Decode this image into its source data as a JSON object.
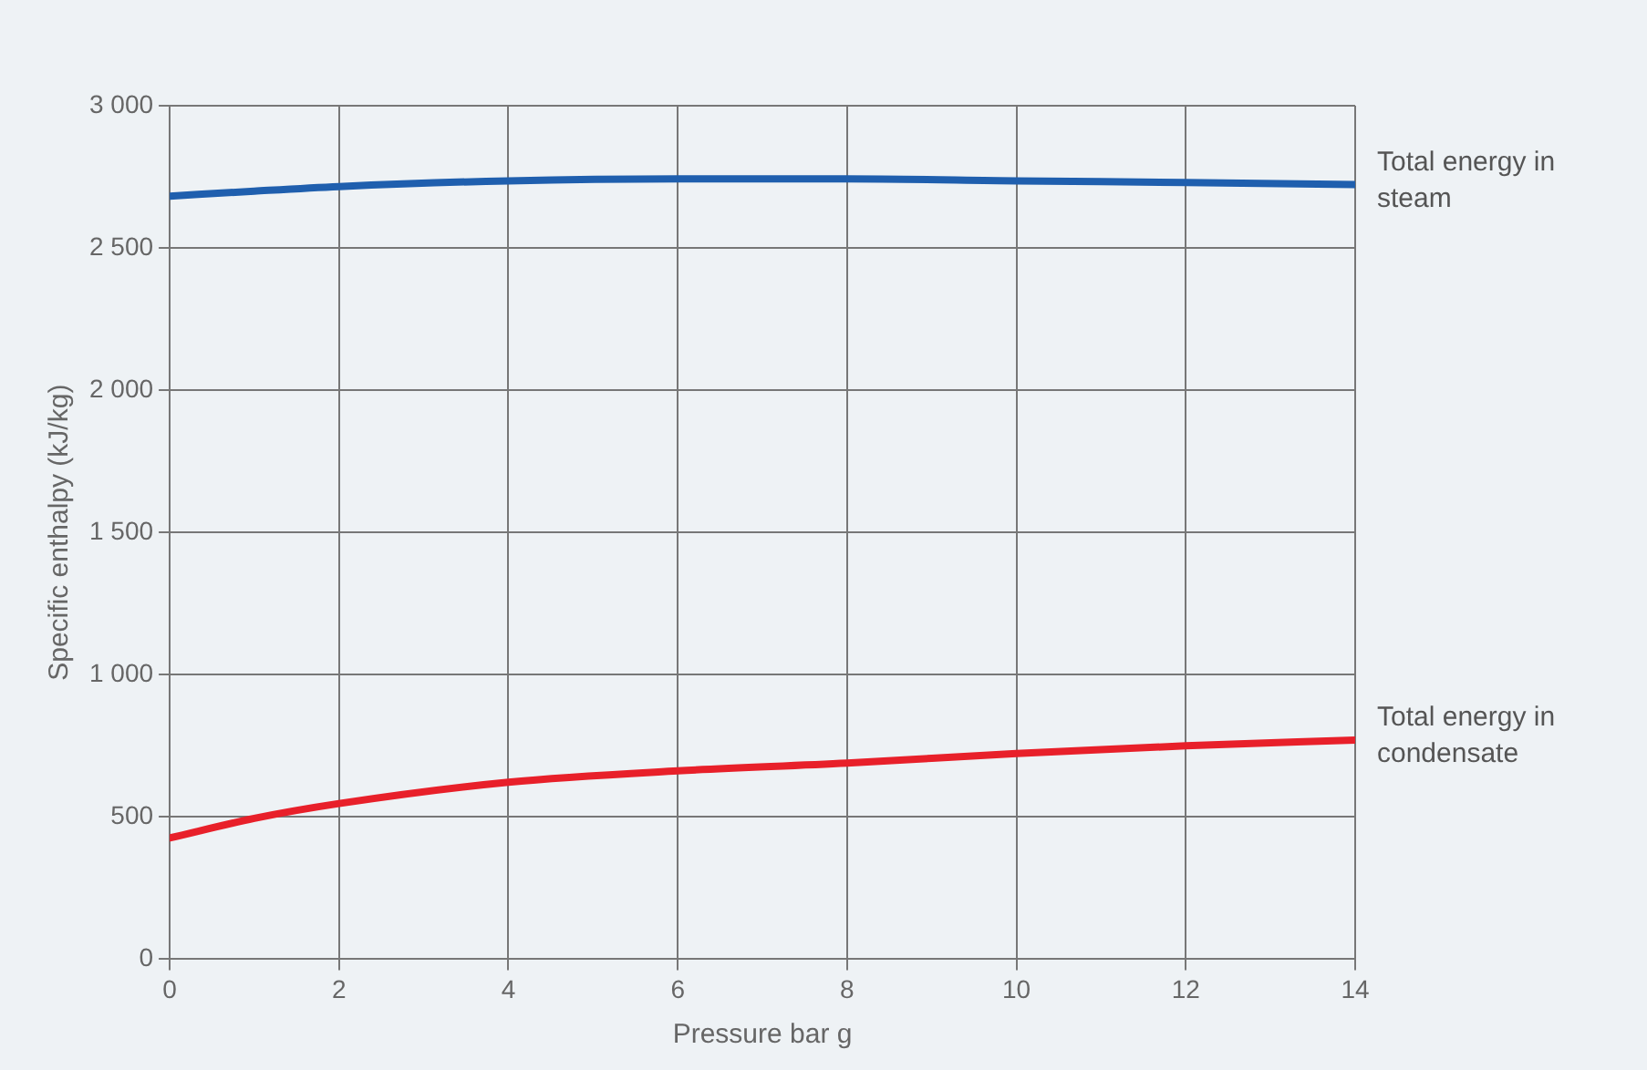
{
  "chart_data": {
    "type": "line",
    "xlabel": "Pressure bar g",
    "ylabel": "Specific enthalpy (kJ/kg)",
    "x": [
      0,
      1,
      2,
      4,
      6,
      8,
      10,
      12,
      14
    ],
    "series": [
      {
        "name": "Total energy in steam",
        "color": "#1f5fae",
        "values": [
          2682,
          2700,
          2716,
          2736,
          2743,
          2743,
          2736,
          2730,
          2723
        ]
      },
      {
        "name": "Total energy in condensate",
        "color": "#e8202a",
        "values": [
          426,
          495,
          547,
          622,
          662,
          689,
          723,
          750,
          770
        ]
      }
    ],
    "xlim": [
      0,
      14
    ],
    "xticks": [
      0,
      2,
      4,
      6,
      8,
      10,
      12,
      14
    ],
    "ylim": [
      0,
      3000
    ],
    "yticks": [
      0,
      500,
      {
        "value": 1000,
        "label": "1 000"
      },
      {
        "value": 1500,
        "label": "1 500"
      },
      {
        "value": 2000,
        "label": "2 000"
      },
      {
        "value": 2500,
        "label": "2 500"
      },
      {
        "value": 3000,
        "label": "3 000"
      }
    ],
    "grid": true,
    "legend": false,
    "marker": "none",
    "line_style": "solid"
  }
}
